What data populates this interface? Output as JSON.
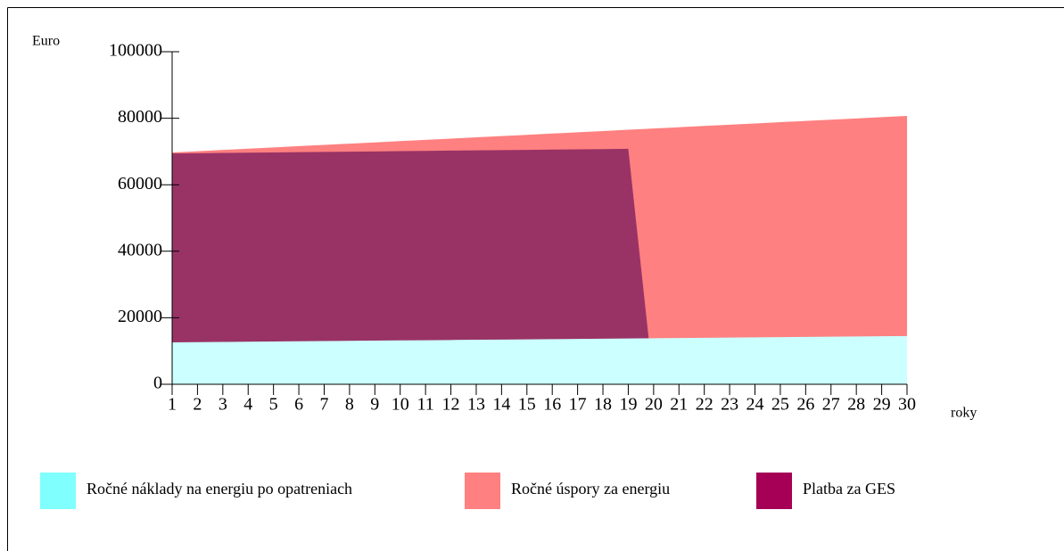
{
  "chart_data": {
    "type": "area",
    "y_label": "Euro",
    "x_label": "roky",
    "x": [
      1,
      2,
      3,
      4,
      5,
      6,
      7,
      8,
      9,
      10,
      11,
      12,
      13,
      14,
      15,
      16,
      17,
      18,
      19,
      20,
      21,
      22,
      23,
      24,
      25,
      26,
      27,
      28,
      29,
      30
    ],
    "xlim": [
      1,
      30
    ],
    "xticks": [
      1,
      2,
      3,
      4,
      5,
      6,
      7,
      8,
      9,
      10,
      11,
      12,
      13,
      14,
      15,
      16,
      17,
      18,
      19,
      20,
      21,
      22,
      23,
      24,
      25,
      26,
      27,
      28,
      29,
      30
    ],
    "ylim": [
      0,
      100000
    ],
    "yticks": [
      0,
      20000,
      40000,
      60000,
      80000,
      100000
    ],
    "series": [
      {
        "name": "Ročné náklady na energiu po opatreniach",
        "color": "#ccffff",
        "legend_color": "#80ffff",
        "values": [
          12600,
          12670,
          12730,
          12800,
          12860,
          12930,
          12990,
          13060,
          13120,
          13190,
          13250,
          13320,
          13390,
          13450,
          13520,
          13580,
          13650,
          13710,
          13780,
          13840,
          13910,
          13980,
          14040,
          14110,
          14170,
          14240,
          14300,
          14370,
          14430,
          14500
        ]
      },
      {
        "name": "Ročné  úspory za energiu",
        "color": "#ff8080",
        "legend_color": "#ff8080",
        "values": [
          69700,
          70080,
          70460,
          70840,
          71220,
          71600,
          71970,
          72350,
          72730,
          73110,
          73490,
          73870,
          74250,
          74630,
          75010,
          75390,
          75770,
          76150,
          76530,
          76910,
          77290,
          77670,
          78050,
          78430,
          78810,
          79190,
          79570,
          79940,
          80320,
          80700
        ]
      },
      {
        "name": "Platba za GES",
        "color": "#993366",
        "legend_color": "#a50055",
        "values": [
          69400,
          69480,
          69560,
          69630,
          69710,
          69790,
          69870,
          69940,
          70020,
          70100,
          70180,
          70260,
          70330,
          70410,
          70490,
          70570,
          70640,
          70720,
          70800,
          0,
          0,
          0,
          0,
          0,
          0,
          0,
          0,
          0,
          0,
          0
        ]
      }
    ],
    "draw_order": [
      1,
      2,
      0
    ]
  }
}
